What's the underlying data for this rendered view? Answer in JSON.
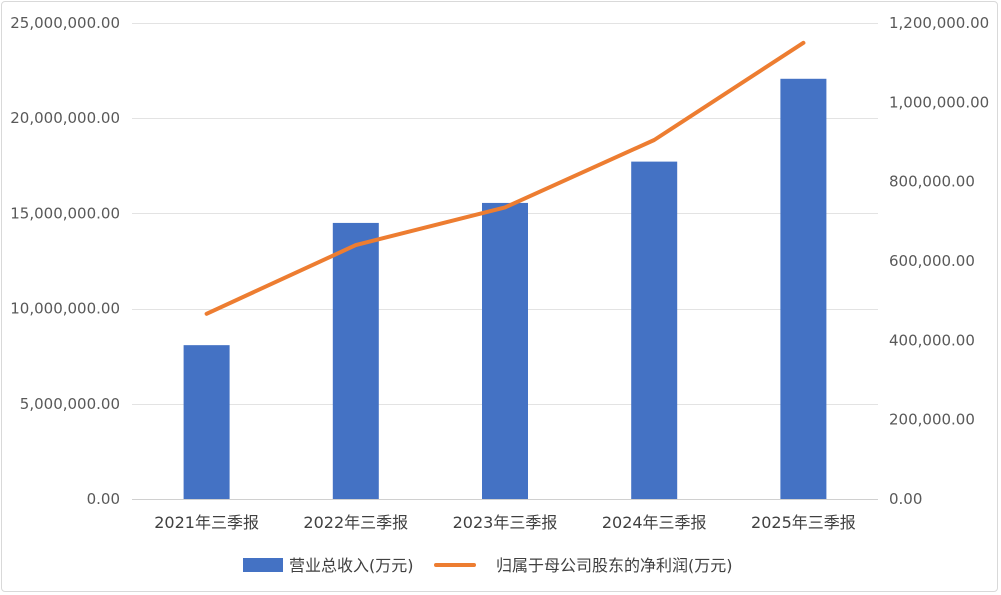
{
  "chart_data": {
    "type": "bar",
    "categories": [
      "2021年三季报",
      "2022年三季报",
      "2023年三季报",
      "2024年三季报",
      "2025年三季报"
    ],
    "series": [
      {
        "name": "营业总收入(万元)",
        "type": "bar",
        "axis": "left",
        "color": "#4472C4",
        "values": [
          8080000,
          14500000,
          15550000,
          17720000,
          22070000
        ]
      },
      {
        "name": "归属于母公司股东的净利润(万元)",
        "type": "line",
        "axis": "right",
        "color": "#ED7D31",
        "values": [
          467000,
          640000,
          735000,
          905000,
          1150000
        ]
      }
    ],
    "y_left": {
      "ylim": [
        0,
        25000000
      ],
      "ticks": [
        0,
        5000000,
        10000000,
        15000000,
        20000000,
        25000000
      ],
      "tick_labels": [
        "0.00",
        "5,000,000.00",
        "10,000,000.00",
        "15,000,000.00",
        "20,000,000.00",
        "25,000,000.00"
      ]
    },
    "y_right": {
      "ylim": [
        0,
        1200000
      ],
      "ticks": [
        0,
        200000,
        400000,
        600000,
        800000,
        1000000,
        1200000
      ],
      "tick_labels": [
        "0.00",
        "200,000.00",
        "400,000.00",
        "600,000.00",
        "800,000.00",
        "1,000,000.00",
        "1,200,000.00"
      ]
    },
    "grid": true,
    "legend_position": "bottom"
  },
  "legend": {
    "bar_label": "营业总收入(万元)",
    "line_label": "归属于母公司股东的净利润(万元)"
  }
}
